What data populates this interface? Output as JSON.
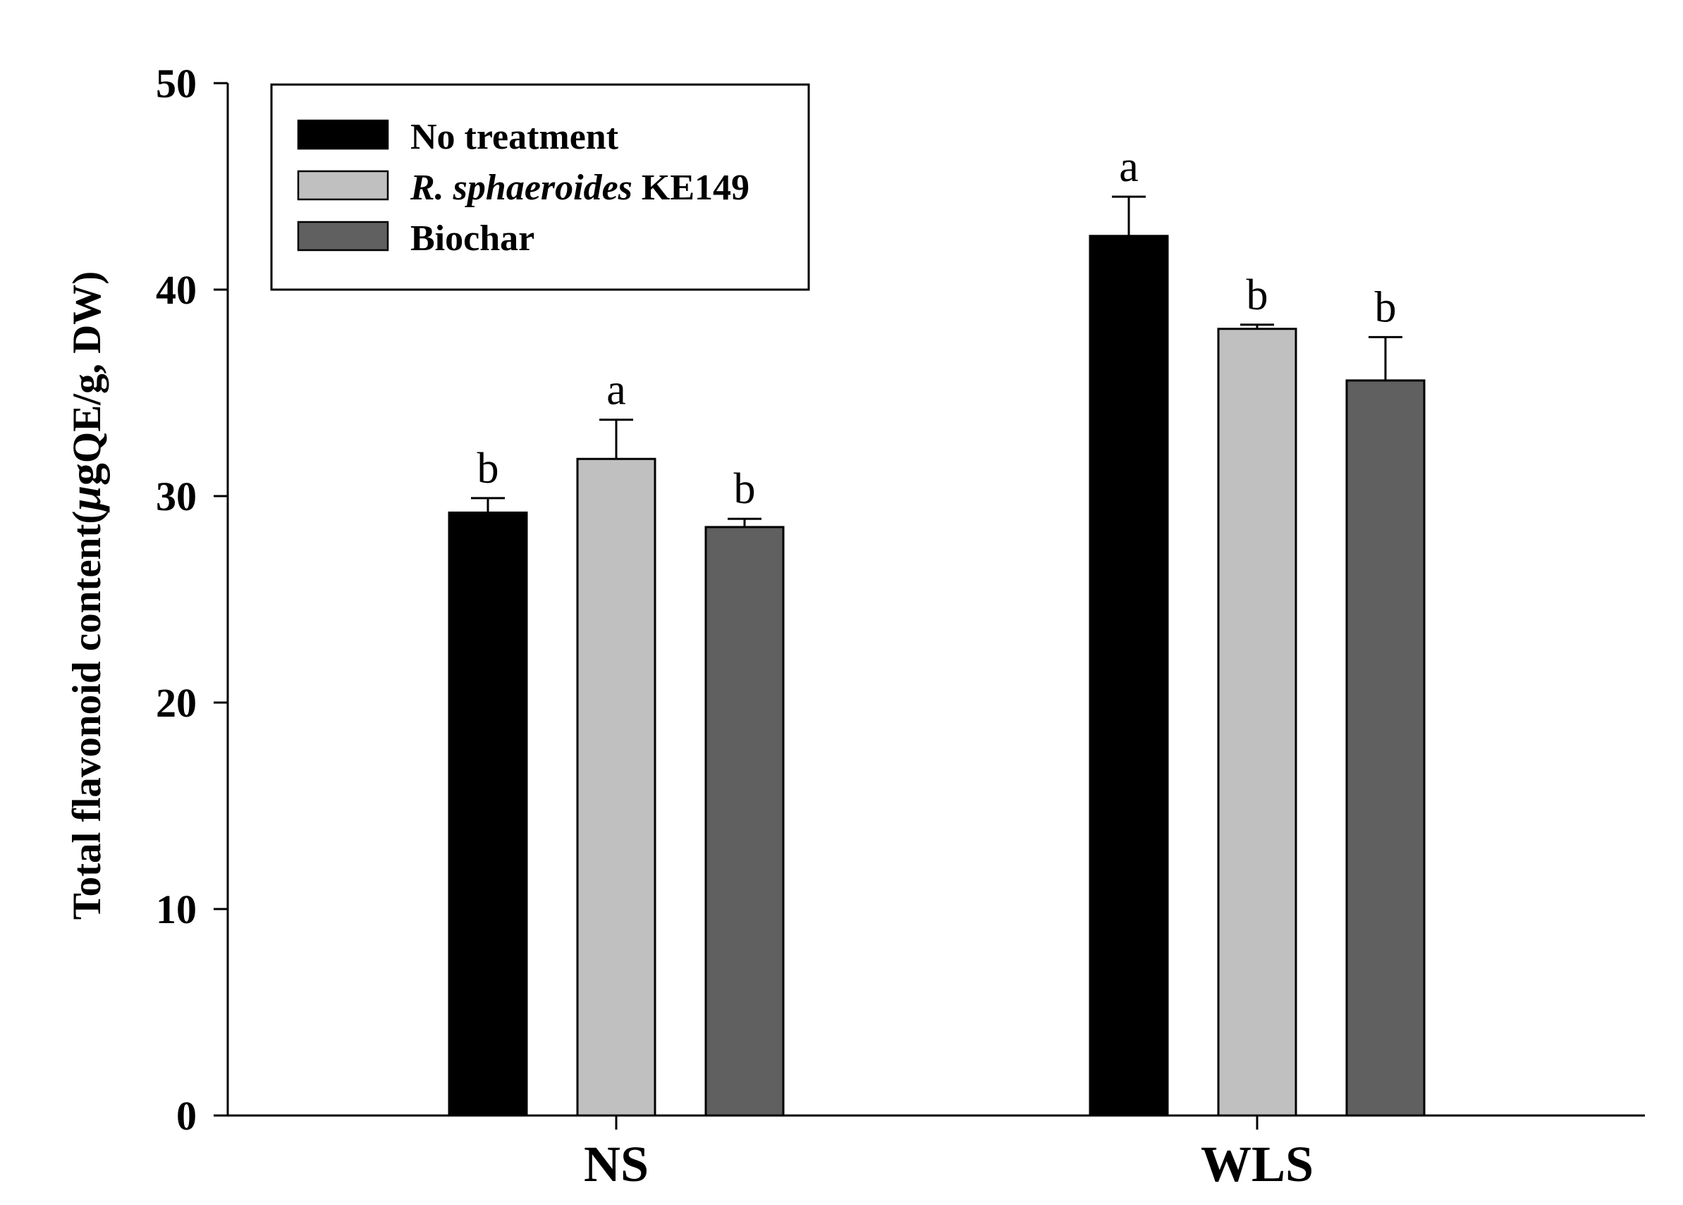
{
  "chart_data": {
    "type": "bar",
    "categories": [
      "NS",
      "WLS"
    ],
    "series": [
      {
        "name": "No treatment",
        "values": [
          29.2,
          42.6
        ],
        "errors": [
          0.7,
          1.9
        ],
        "significance": [
          "b",
          "a"
        ],
        "color": "#000000"
      },
      {
        "name": "R. sphaeroides KE149",
        "name_italic": "R. sphaeroides",
        "name_rest": "KE149",
        "values": [
          31.8,
          38.1
        ],
        "errors": [
          1.9,
          0.2
        ],
        "significance": [
          "a",
          "b"
        ],
        "color": "#c0c0c0"
      },
      {
        "name": "Biochar",
        "values": [
          28.5,
          35.6
        ],
        "errors": [
          0.4,
          2.1
        ],
        "significance": [
          "b",
          "b"
        ],
        "color": "#606060"
      }
    ],
    "ylabel": "Total flavonoid content(μgQE/g, DW)",
    "ylabel_parts": {
      "prefix": "Total flavonoid content(",
      "mu": "μ",
      "g": "g",
      "suffix": "QE/g, DW)"
    },
    "xlabel": "",
    "ylim": [
      0,
      50
    ],
    "yticks": [
      0,
      10,
      20,
      30,
      40,
      50
    ],
    "grid": false,
    "legend_position": "top-left"
  }
}
